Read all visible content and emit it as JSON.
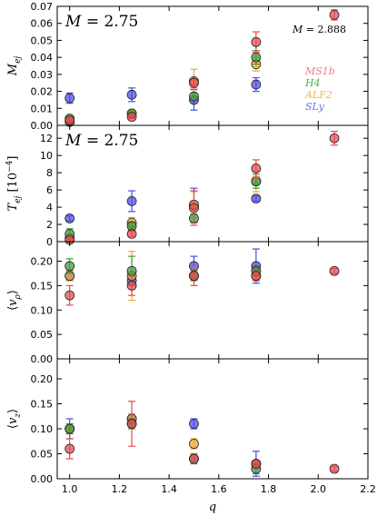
{
  "chart_data": {
    "type": "scatter",
    "xlabel": "q",
    "xlim": [
      0.95,
      2.2
    ],
    "xticks": [
      1.0,
      1.2,
      1.4,
      1.6,
      1.8,
      2.0,
      2.2
    ],
    "xtick_labels": [
      "1.0",
      "1.2",
      "1.4",
      "1.6",
      "1.8",
      "2.0",
      "2.2"
    ],
    "legend": {
      "location": "right, top panel",
      "entries": [
        {
          "name": "MS1b",
          "color": "#f07a82"
        },
        {
          "name": "H4",
          "color": "#5aab4e"
        },
        {
          "name": "ALF2",
          "color": "#f2b54a"
        },
        {
          "name": "SLy",
          "color": "#7070e8"
        }
      ]
    },
    "series_colors": {
      "MS1b": "#e8484f",
      "H4": "#3f9a3a",
      "ALF2": "#f2a52e",
      "SLy": "#4a4aec"
    },
    "panels": [
      {
        "id": "mej",
        "ylabel": "M_ej",
        "ylim": [
          0,
          0.07
        ],
        "yticks": [
          0.0,
          0.01,
          0.02,
          0.03,
          0.04,
          0.05,
          0.06,
          0.07
        ],
        "ytick_labels": [
          "0.00",
          "0.01",
          "0.02",
          "0.03",
          "0.04",
          "0.05",
          "0.06",
          "0.07"
        ],
        "annotation": "M = 2.75",
        "annotation2": "M = 2.888",
        "series": [
          {
            "name": "SLy",
            "points": [
              {
                "x": 1.0,
                "y": 0.016,
                "err": 0.003
              },
              {
                "x": 1.25,
                "y": 0.018,
                "err": 0.004
              },
              {
                "x": 1.5,
                "y": 0.015,
                "err": 0.006
              },
              {
                "x": 1.75,
                "y": 0.024,
                "err": 0.004
              }
            ]
          },
          {
            "name": "ALF2",
            "points": [
              {
                "x": 1.0,
                "y": 0.002,
                "err": 0.001
              },
              {
                "x": 1.25,
                "y": 0.007,
                "err": 0.002
              },
              {
                "x": 1.5,
                "y": 0.026,
                "err": 0.007
              },
              {
                "x": 1.75,
                "y": 0.036,
                "err": 0.004
              }
            ]
          },
          {
            "name": "H4",
            "points": [
              {
                "x": 1.0,
                "y": 0.004,
                "err": 0.001
              },
              {
                "x": 1.25,
                "y": 0.007,
                "err": 0.001
              },
              {
                "x": 1.5,
                "y": 0.017,
                "err": 0.002
              },
              {
                "x": 1.75,
                "y": 0.04,
                "err": 0.004
              }
            ]
          },
          {
            "name": "MS1b",
            "points": [
              {
                "x": 1.0,
                "y": 0.003,
                "err": 0.001
              },
              {
                "x": 1.25,
                "y": 0.005,
                "err": 0.001
              },
              {
                "x": 1.5,
                "y": 0.025,
                "err": 0.003
              },
              {
                "x": 1.75,
                "y": 0.049,
                "err": 0.006
              },
              {
                "x": 2.065,
                "y": 0.065,
                "err": 0.003
              }
            ]
          }
        ]
      },
      {
        "id": "tej",
        "ylabel": "T_ej [10^-4]",
        "ylim": [
          0,
          13.5
        ],
        "yticks": [
          0,
          2,
          4,
          6,
          8,
          10,
          12
        ],
        "ytick_labels": [
          "0",
          "2",
          "4",
          "6",
          "8",
          "10",
          "12"
        ],
        "annotation": "M = 2.75",
        "series": [
          {
            "name": "SLy",
            "points": [
              {
                "x": 1.0,
                "y": 2.7,
                "err": 0.3
              },
              {
                "x": 1.25,
                "y": 4.7,
                "err": 1.2
              },
              {
                "x": 1.5,
                "y": 4.2,
                "err": 2.0
              },
              {
                "x": 1.75,
                "y": 5.0,
                "err": 0.3
              }
            ]
          },
          {
            "name": "ALF2",
            "points": [
              {
                "x": 1.0,
                "y": 0.4,
                "err": 0.2
              },
              {
                "x": 1.25,
                "y": 2.2,
                "err": 0.6
              },
              {
                "x": 1.5,
                "y": 4.3,
                "err": 1.5
              },
              {
                "x": 1.75,
                "y": 7.0,
                "err": 1.2
              }
            ]
          },
          {
            "name": "H4",
            "points": [
              {
                "x": 1.0,
                "y": 0.9,
                "err": 0.6
              },
              {
                "x": 1.25,
                "y": 1.8,
                "err": 0.5
              },
              {
                "x": 1.5,
                "y": 2.7,
                "err": 0.5
              },
              {
                "x": 1.75,
                "y": 7.0,
                "err": 0.8
              }
            ]
          },
          {
            "name": "MS1b",
            "points": [
              {
                "x": 1.0,
                "y": 0.2,
                "err": 0.2
              },
              {
                "x": 1.25,
                "y": 0.9,
                "err": 0.3
              },
              {
                "x": 1.5,
                "y": 3.9,
                "err": 2.0
              },
              {
                "x": 1.75,
                "y": 8.5,
                "err": 1.0
              },
              {
                "x": 2.065,
                "y": 12.0,
                "err": 0.8
              }
            ]
          }
        ]
      },
      {
        "id": "vrho",
        "ylabel": "<v_rho>",
        "ylim": [
          0,
          0.24
        ],
        "yticks": [
          0.0,
          0.05,
          0.1,
          0.15,
          0.2
        ],
        "ytick_labels": [
          "0.00",
          "0.05",
          "0.10",
          "0.15",
          "0.20"
        ],
        "series": [
          {
            "name": "SLy",
            "points": [
              {
                "x": 1.0,
                "y": 0.17,
                "err": 0.01
              },
              {
                "x": 1.25,
                "y": 0.16,
                "err": 0.01
              },
              {
                "x": 1.5,
                "y": 0.19,
                "err": 0.02
              },
              {
                "x": 1.75,
                "y": 0.19,
                "err": 0.035
              }
            ]
          },
          {
            "name": "ALF2",
            "points": [
              {
                "x": 1.0,
                "y": 0.17,
                "err": 0.01
              },
              {
                "x": 1.25,
                "y": 0.17,
                "err": 0.05
              },
              {
                "x": 1.5,
                "y": 0.17,
                "err": 0.02
              },
              {
                "x": 1.75,
                "y": 0.17,
                "err": 0.01
              }
            ]
          },
          {
            "name": "H4",
            "points": [
              {
                "x": 1.0,
                "y": 0.19,
                "err": 0.015
              },
              {
                "x": 1.25,
                "y": 0.18,
                "err": 0.03
              },
              {
                "x": 1.5,
                "y": 0.17,
                "err": 0.01
              },
              {
                "x": 1.75,
                "y": 0.18,
                "err": 0.01
              }
            ]
          },
          {
            "name": "MS1b",
            "points": [
              {
                "x": 1.0,
                "y": 0.13,
                "err": 0.02
              },
              {
                "x": 1.25,
                "y": 0.15,
                "err": 0.02
              },
              {
                "x": 1.5,
                "y": 0.17,
                "err": 0.02
              },
              {
                "x": 1.75,
                "y": 0.17,
                "err": 0.01
              },
              {
                "x": 2.065,
                "y": 0.18,
                "err": 0.005
              }
            ]
          }
        ]
      },
      {
        "id": "vz",
        "ylabel": "<v_z>",
        "ylim": [
          0,
          0.24
        ],
        "yticks": [
          0.0,
          0.05,
          0.1,
          0.15,
          0.2
        ],
        "ytick_labels": [
          "0.00",
          "0.05",
          "0.10",
          "0.15",
          "0.20"
        ],
        "series": [
          {
            "name": "SLy",
            "points": [
              {
                "x": 1.0,
                "y": 0.1,
                "err": 0.02
              },
              {
                "x": 1.25,
                "y": 0.12,
                "err": 0.01
              },
              {
                "x": 1.5,
                "y": 0.11,
                "err": 0.01
              },
              {
                "x": 1.75,
                "y": 0.03,
                "err": 0.025
              }
            ]
          },
          {
            "name": "ALF2",
            "points": [
              {
                "x": 1.0,
                "y": 0.1,
                "err": 0.01
              },
              {
                "x": 1.25,
                "y": 0.12,
                "err": 0.01
              },
              {
                "x": 1.5,
                "y": 0.07,
                "err": 0.01
              },
              {
                "x": 1.75,
                "y": 0.03,
                "err": 0.005
              }
            ]
          },
          {
            "name": "H4",
            "points": [
              {
                "x": 1.0,
                "y": 0.1,
                "err": 0.01
              },
              {
                "x": 1.25,
                "y": 0.11,
                "err": 0.01
              },
              {
                "x": 1.5,
                "y": 0.04,
                "err": 0.01
              },
              {
                "x": 1.75,
                "y": 0.02,
                "err": 0.01
              }
            ]
          },
          {
            "name": "MS1b",
            "points": [
              {
                "x": 1.0,
                "y": 0.06,
                "err": 0.02
              },
              {
                "x": 1.25,
                "y": 0.11,
                "err": 0.045
              },
              {
                "x": 1.5,
                "y": 0.04,
                "err": 0.01
              },
              {
                "x": 1.75,
                "y": 0.03,
                "err": 0.005
              },
              {
                "x": 2.065,
                "y": 0.02,
                "err": 0.005
              }
            ]
          }
        ]
      }
    ]
  }
}
